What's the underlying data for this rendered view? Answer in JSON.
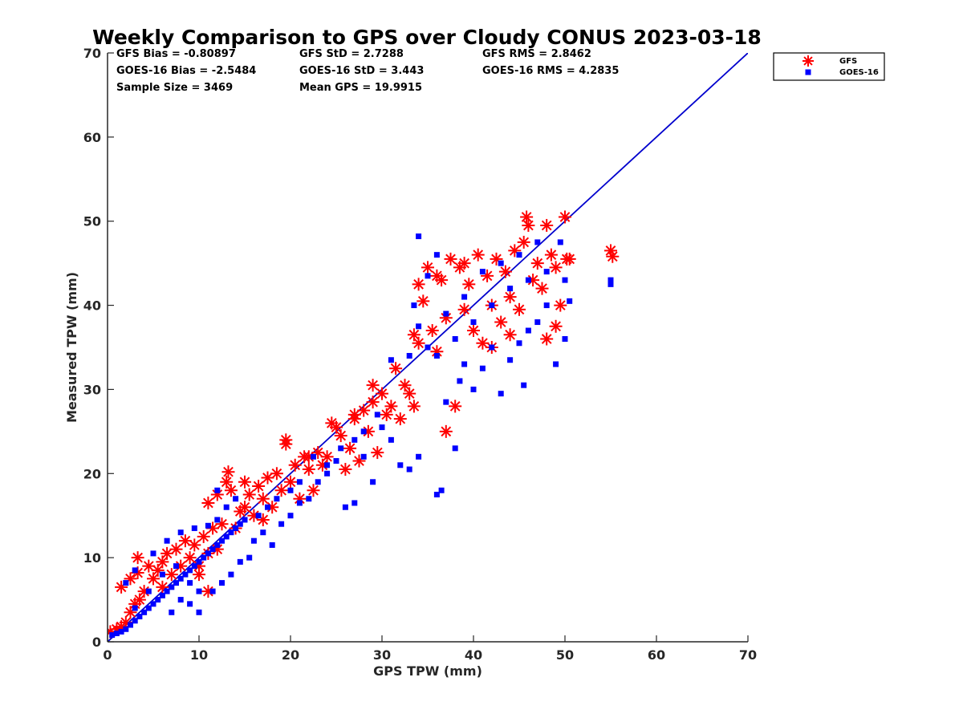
{
  "chart_data": {
    "type": "scatter",
    "title": "Weekly Comparison to GPS over Cloudy CONUS 2023-03-18",
    "xlabel": "GPS TPW (mm)",
    "ylabel": "Measured TPW (mm)",
    "xlim": [
      0,
      70
    ],
    "ylim": [
      0,
      70
    ],
    "xticks": [
      "0",
      "10",
      "20",
      "30",
      "40",
      "50",
      "60",
      "70"
    ],
    "yticks": [
      "0",
      "10",
      "20",
      "30",
      "40",
      "50",
      "60",
      "70"
    ],
    "grid": false,
    "legend_position": "outside-top-right",
    "stats": [
      [
        "GFS Bias = -0.80897",
        "GFS StD = 2.7288",
        "GFS RMS = 2.8462"
      ],
      [
        "GOES-16 Bias = -2.5484",
        "GOES-16 StD = 3.443",
        "GOES-16 RMS = 4.2835"
      ],
      [
        "Sample Size = 3469",
        "Mean GPS = 19.9915",
        ""
      ]
    ],
    "reference_line": {
      "x": [
        0,
        70
      ],
      "y": [
        0,
        70
      ],
      "color": "#0000cd"
    },
    "series": [
      {
        "name": "GFS",
        "marker": "asterisk",
        "color": "#ff0000",
        "points": [
          [
            0.3,
            1.2
          ],
          [
            1.0,
            1.5
          ],
          [
            1.5,
            1.8
          ],
          [
            2.0,
            2.3
          ],
          [
            2.5,
            3.5
          ],
          [
            3.0,
            4.5
          ],
          [
            3.5,
            5.0
          ],
          [
            4.0,
            6.0
          ],
          [
            1.5,
            6.5
          ],
          [
            2.5,
            7.5
          ],
          [
            3.3,
            8.2
          ],
          [
            3.3,
            10.0
          ],
          [
            4.5,
            9.0
          ],
          [
            5.0,
            7.5
          ],
          [
            5.5,
            8.5
          ],
          [
            6.0,
            9.5
          ],
          [
            6.5,
            10.5
          ],
          [
            7.0,
            8.0
          ],
          [
            7.5,
            11.0
          ],
          [
            8.0,
            9.0
          ],
          [
            8.5,
            12.0
          ],
          [
            9.0,
            10.0
          ],
          [
            9.5,
            11.5
          ],
          [
            10.0,
            9.0
          ],
          [
            10.5,
            12.5
          ],
          [
            11.0,
            6.0
          ],
          [
            11.0,
            10.5
          ],
          [
            11.5,
            13.5
          ],
          [
            12.0,
            11.0
          ],
          [
            12.5,
            14.0
          ],
          [
            13.0,
            19.0
          ],
          [
            13.2,
            20.2
          ],
          [
            13.5,
            18.0
          ],
          [
            11.0,
            16.5
          ],
          [
            12.0,
            17.5
          ],
          [
            14.0,
            13.5
          ],
          [
            14.5,
            15.5
          ],
          [
            15.0,
            16.0
          ],
          [
            15.5,
            17.5
          ],
          [
            16.0,
            15.0
          ],
          [
            16.5,
            18.5
          ],
          [
            17.0,
            17.0
          ],
          [
            17.5,
            19.5
          ],
          [
            18.0,
            16.0
          ],
          [
            18.5,
            20.0
          ],
          [
            19.0,
            18.0
          ],
          [
            19.5,
            23.5
          ],
          [
            19.5,
            24.0
          ],
          [
            20.0,
            19.0
          ],
          [
            20.5,
            21.0
          ],
          [
            21.0,
            17.0
          ],
          [
            21.5,
            22.0
          ],
          [
            22.0,
            20.5
          ],
          [
            22.5,
            18.0
          ],
          [
            23.0,
            22.5
          ],
          [
            23.5,
            21.0
          ],
          [
            24.0,
            22.0
          ],
          [
            25.0,
            25.5
          ],
          [
            25.5,
            24.5
          ],
          [
            26.0,
            20.5
          ],
          [
            26.5,
            23.0
          ],
          [
            27.0,
            26.5
          ],
          [
            27.5,
            21.5
          ],
          [
            28.0,
            27.5
          ],
          [
            28.5,
            25.0
          ],
          [
            29.0,
            28.5
          ],
          [
            29.5,
            22.5
          ],
          [
            30.0,
            29.5
          ],
          [
            30.5,
            27.0
          ],
          [
            31.0,
            28.0
          ],
          [
            31.5,
            32.5
          ],
          [
            32.0,
            26.5
          ],
          [
            32.5,
            30.5
          ],
          [
            33.0,
            29.5
          ],
          [
            33.5,
            28.0
          ],
          [
            33.5,
            36.5
          ],
          [
            34.0,
            42.5
          ],
          [
            34.5,
            40.5
          ],
          [
            35.0,
            44.5
          ],
          [
            35.5,
            37.0
          ],
          [
            36.0,
            34.5
          ],
          [
            36.5,
            43.0
          ],
          [
            37.0,
            38.5
          ],
          [
            37.0,
            25.0
          ],
          [
            37.5,
            45.5
          ],
          [
            38.0,
            28.0
          ],
          [
            38.5,
            44.5
          ],
          [
            39.0,
            39.5
          ],
          [
            39.5,
            42.5
          ],
          [
            40.0,
            37.0
          ],
          [
            40.5,
            46.0
          ],
          [
            41.0,
            35.5
          ],
          [
            41.5,
            43.5
          ],
          [
            42.0,
            40.0
          ],
          [
            42.5,
            45.5
          ],
          [
            43.0,
            38.0
          ],
          [
            43.5,
            44.0
          ],
          [
            44.0,
            41.0
          ],
          [
            44.5,
            46.5
          ],
          [
            45.0,
            39.5
          ],
          [
            45.5,
            47.5
          ],
          [
            45.8,
            50.5
          ],
          [
            46.0,
            49.5
          ],
          [
            46.5,
            43.0
          ],
          [
            47.0,
            45.0
          ],
          [
            47.5,
            42.0
          ],
          [
            48.0,
            49.5
          ],
          [
            48.5,
            46.0
          ],
          [
            49.0,
            44.5
          ],
          [
            49.5,
            40.0
          ],
          [
            50.0,
            50.5
          ],
          [
            50.2,
            45.5
          ],
          [
            50.5,
            45.5
          ],
          [
            49.0,
            37.5
          ],
          [
            48.0,
            36.0
          ],
          [
            55.0,
            46.5
          ],
          [
            55.2,
            45.8
          ],
          [
            44.0,
            36.5
          ],
          [
            42.0,
            35.0
          ],
          [
            39.0,
            45.0
          ],
          [
            36.0,
            43.5
          ],
          [
            34.0,
            35.5
          ],
          [
            29.0,
            30.5
          ],
          [
            27.0,
            27.0
          ],
          [
            24.5,
            26.0
          ],
          [
            22.0,
            22.0
          ],
          [
            17.0,
            14.5
          ],
          [
            15.0,
            19.0
          ],
          [
            10.0,
            8.0
          ],
          [
            6.0,
            6.5
          ]
        ]
      },
      {
        "name": "GOES-16",
        "marker": "square",
        "color": "#0000ff",
        "points": [
          [
            0.5,
            0.8
          ],
          [
            1.0,
            1.0
          ],
          [
            1.5,
            1.2
          ],
          [
            2.0,
            1.5
          ],
          [
            2.5,
            2.0
          ],
          [
            3.0,
            2.5
          ],
          [
            3.5,
            3.0
          ],
          [
            4.0,
            3.5
          ],
          [
            4.5,
            4.0
          ],
          [
            5.0,
            4.5
          ],
          [
            5.5,
            5.0
          ],
          [
            6.0,
            5.5
          ],
          [
            6.5,
            6.0
          ],
          [
            7.0,
            6.5
          ],
          [
            7.5,
            7.0
          ],
          [
            8.0,
            7.5
          ],
          [
            8.5,
            8.0
          ],
          [
            9.0,
            8.5
          ],
          [
            9.5,
            9.0
          ],
          [
            10.0,
            9.5
          ],
          [
            10.5,
            10.0
          ],
          [
            11.0,
            10.5
          ],
          [
            11.5,
            11.0
          ],
          [
            12.0,
            11.5
          ],
          [
            12.5,
            12.0
          ],
          [
            13.0,
            12.5
          ],
          [
            13.5,
            13.0
          ],
          [
            14.0,
            13.5
          ],
          [
            14.5,
            14.0
          ],
          [
            15.0,
            14.5
          ],
          [
            2.0,
            7.0
          ],
          [
            3.0,
            8.5
          ],
          [
            5.0,
            10.5
          ],
          [
            6.5,
            12.0
          ],
          [
            8.0,
            13.0
          ],
          [
            9.5,
            13.5
          ],
          [
            11.0,
            13.8
          ],
          [
            12.0,
            14.5
          ],
          [
            7.0,
            3.5
          ],
          [
            9.0,
            4.5
          ],
          [
            10.0,
            3.5
          ],
          [
            11.5,
            6.0
          ],
          [
            12.5,
            7.0
          ],
          [
            13.5,
            8.0
          ],
          [
            14.5,
            9.5
          ],
          [
            15.5,
            10.0
          ],
          [
            16.0,
            12.0
          ],
          [
            17.0,
            13.0
          ],
          [
            18.0,
            11.5
          ],
          [
            19.0,
            14.0
          ],
          [
            20.0,
            15.0
          ],
          [
            21.0,
            16.5
          ],
          [
            22.0,
            17.0
          ],
          [
            23.0,
            19.0
          ],
          [
            24.0,
            20.0
          ],
          [
            25.0,
            21.5
          ],
          [
            26.0,
            16.0
          ],
          [
            27.0,
            16.5
          ],
          [
            28.0,
            22.0
          ],
          [
            29.0,
            19.0
          ],
          [
            30.0,
            25.5
          ],
          [
            31.0,
            24.0
          ],
          [
            32.0,
            21.0
          ],
          [
            33.0,
            20.5
          ],
          [
            34.0,
            22.0
          ],
          [
            36.0,
            17.5
          ],
          [
            36.5,
            18.0
          ],
          [
            37.0,
            28.5
          ],
          [
            38.0,
            23.0
          ],
          [
            38.5,
            31.0
          ],
          [
            39.0,
            33.0
          ],
          [
            40.0,
            30.0
          ],
          [
            41.0,
            32.5
          ],
          [
            42.0,
            35.0
          ],
          [
            43.0,
            29.5
          ],
          [
            44.0,
            33.5
          ],
          [
            45.0,
            35.5
          ],
          [
            45.5,
            30.5
          ],
          [
            46.0,
            37.0
          ],
          [
            47.0,
            38.0
          ],
          [
            48.0,
            40.0
          ],
          [
            49.0,
            33.0
          ],
          [
            50.0,
            36.0
          ],
          [
            50.5,
            40.5
          ],
          [
            47.0,
            47.5
          ],
          [
            46.0,
            43.0
          ],
          [
            44.0,
            42.0
          ],
          [
            42.0,
            40.0
          ],
          [
            40.0,
            38.0
          ],
          [
            38.0,
            36.0
          ],
          [
            36.0,
            34.0
          ],
          [
            35.0,
            35.0
          ],
          [
            34.0,
            37.5
          ],
          [
            33.0,
            34.0
          ],
          [
            33.5,
            40.0
          ],
          [
            34.0,
            48.2
          ],
          [
            35.0,
            43.5
          ],
          [
            36.0,
            46.0
          ],
          [
            37.0,
            39.0
          ],
          [
            39.0,
            41.0
          ],
          [
            41.0,
            44.0
          ],
          [
            43.0,
            45.0
          ],
          [
            45.0,
            46.0
          ],
          [
            48.0,
            44.0
          ],
          [
            49.5,
            47.5
          ],
          [
            50.0,
            43.0
          ],
          [
            55.0,
            42.5
          ],
          [
            55.0,
            43.0
          ],
          [
            31.0,
            33.5
          ],
          [
            29.5,
            27.0
          ],
          [
            28.0,
            25.0
          ],
          [
            27.0,
            24.0
          ],
          [
            25.5,
            23.0
          ],
          [
            24.0,
            21.0
          ],
          [
            22.5,
            22.0
          ],
          [
            21.0,
            19.0
          ],
          [
            20.0,
            18.0
          ],
          [
            18.5,
            17.0
          ],
          [
            17.5,
            16.0
          ],
          [
            16.5,
            15.0
          ],
          [
            12.0,
            18.0
          ],
          [
            13.0,
            16.0
          ],
          [
            14.0,
            17.0
          ],
          [
            10.0,
            6.0
          ],
          [
            9.0,
            7.0
          ],
          [
            8.0,
            5.0
          ],
          [
            7.5,
            9.0
          ],
          [
            6.0,
            8.0
          ],
          [
            4.5,
            6.0
          ],
          [
            3.0,
            4.0
          ]
        ]
      }
    ]
  }
}
